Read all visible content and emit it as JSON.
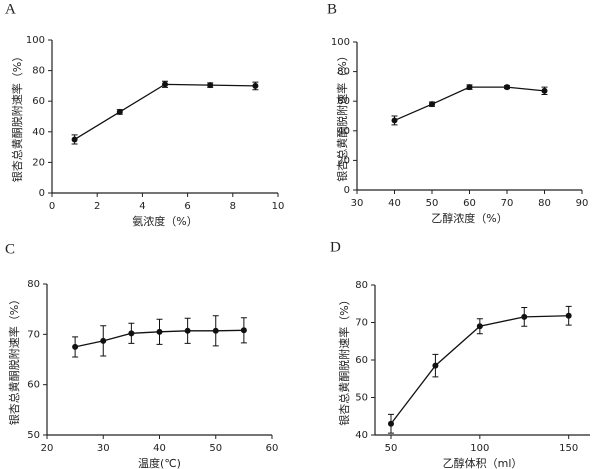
{
  "chart_data": [
    {
      "type": "line",
      "label": "A",
      "xlabel": "氨浓度（%）",
      "ylabel": "银杏总黄酮脱附速率（%）",
      "color": "#111111",
      "x": [
        1,
        3,
        5,
        7,
        9
      ],
      "values": [
        35,
        53,
        71,
        70.5,
        70
      ],
      "errors": [
        3,
        1.5,
        2,
        1.5,
        2.5
      ],
      "xlim": [
        0,
        10
      ],
      "xticks": [
        0,
        2,
        4,
        6,
        8,
        10
      ],
      "ylim": [
        0,
        100
      ],
      "yticks": [
        0,
        20,
        40,
        60,
        80,
        100
      ]
    },
    {
      "type": "line",
      "label": "B",
      "xlabel": "乙醇浓度（%）",
      "ylabel": "银杏总黄酮脱附速率（%）",
      "color": "#111111",
      "x": [
        40,
        50,
        60,
        70,
        80
      ],
      "values": [
        47,
        58,
        69.5,
        69.5,
        67
      ],
      "errors": [
        3,
        1.5,
        1.5,
        1,
        2.5
      ],
      "xlim": [
        30,
        90
      ],
      "xticks": [
        30,
        40,
        50,
        60,
        70,
        80,
        90
      ],
      "ylim": [
        0,
        100
      ],
      "yticks": [
        0,
        20,
        40,
        60,
        80,
        100
      ]
    },
    {
      "type": "line",
      "label": "C",
      "xlabel": "温度(℃)",
      "ylabel": "银杏总黄酮脱附速率（%）",
      "color": "#111111",
      "x": [
        25,
        30,
        35,
        40,
        45,
        50,
        55
      ],
      "values": [
        67.5,
        68.7,
        70.2,
        70.5,
        70.7,
        70.7,
        70.8
      ],
      "errors": [
        2,
        3,
        2,
        2.5,
        2.5,
        3,
        2.5
      ],
      "xlim": [
        20,
        60
      ],
      "xticks": [
        20,
        30,
        40,
        50,
        60
      ],
      "ylim": [
        50,
        80
      ],
      "yticks": [
        50,
        60,
        70,
        80
      ]
    },
    {
      "type": "line",
      "label": "D",
      "xlabel": "乙醇体积（ml）",
      "ylabel": "银杏总黄酮脱附速率（%）",
      "color": "#111111",
      "x": [
        50,
        75,
        100,
        125,
        150
      ],
      "values": [
        43,
        58.5,
        69,
        71.5,
        71.8
      ],
      "errors": [
        2.5,
        3,
        2,
        2.5,
        2.5
      ],
      "xlim": [
        41,
        162
      ],
      "xticks": [
        50,
        100,
        150
      ],
      "ylim": [
        40,
        80
      ],
      "yticks": [
        40,
        50,
        60,
        70,
        80
      ]
    }
  ]
}
